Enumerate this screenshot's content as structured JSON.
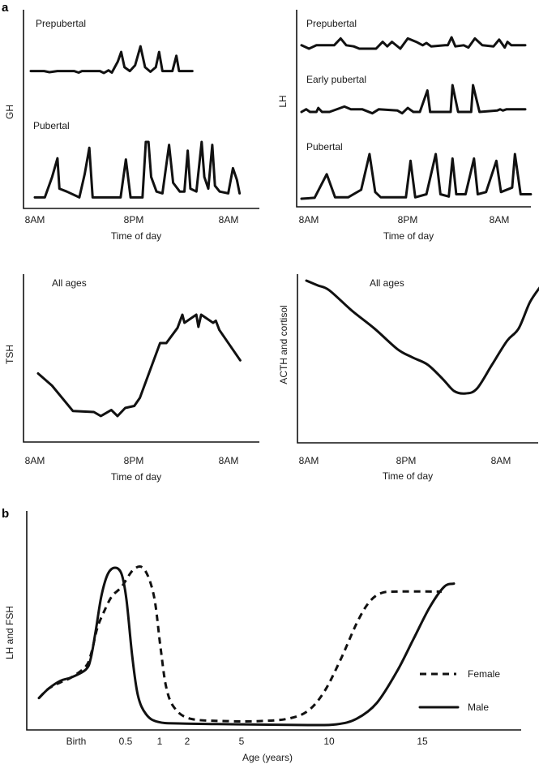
{
  "figure": {
    "panel_labels": [
      "a",
      "b"
    ]
  },
  "chart_data": [
    {
      "id": "gh",
      "type": "line",
      "panel": "a",
      "title": "",
      "xlabel": "Time of day",
      "ylabel": "GH",
      "xticks": [
        {
          "h": 0,
          "label": "8AM"
        },
        {
          "h": 12,
          "label": "8PM"
        },
        {
          "h": 24,
          "label": "8AM"
        }
      ],
      "xlim": [
        -1.4,
        27.2
      ],
      "series": [
        {
          "name": "Prepubertal",
          "style": "solid",
          "band": [
            0.62,
            1.0
          ],
          "points": [
            [
              0,
              0.2
            ],
            [
              2,
              0.2
            ],
            [
              2.8,
              0.17
            ],
            [
              4,
              0.2
            ],
            [
              6.5,
              0.2
            ],
            [
              7.2,
              0.16
            ],
            [
              7.7,
              0.2
            ],
            [
              10.4,
              0.2
            ],
            [
              11,
              0.15
            ],
            [
              11.7,
              0.22
            ],
            [
              12.2,
              0.16
            ],
            [
              13.1,
              0.45
            ],
            [
              13.6,
              0.7
            ],
            [
              14.1,
              0.3
            ],
            [
              14.9,
              0.2
            ],
            [
              15.7,
              0.35
            ],
            [
              16.5,
              0.85
            ],
            [
              17.2,
              0.3
            ],
            [
              18,
              0.18
            ],
            [
              18.8,
              0.3
            ],
            [
              19.3,
              0.7
            ],
            [
              19.8,
              0.2
            ],
            [
              21.3,
              0.2
            ],
            [
              21.9,
              0.6
            ],
            [
              22.3,
              0.2
            ],
            [
              24.3,
              0.2
            ]
          ]
        },
        {
          "name": "Pubertal",
          "style": "solid",
          "band": [
            0.0,
            0.41
          ],
          "points": [
            [
              0,
              0.05
            ],
            [
              1.5,
              0.05
            ],
            [
              2.6,
              0.4
            ],
            [
              3.4,
              0.72
            ],
            [
              3.7,
              0.2
            ],
            [
              4.8,
              0.15
            ],
            [
              6.7,
              0.05
            ],
            [
              7.5,
              0.45
            ],
            [
              8.2,
              0.9
            ],
            [
              8.7,
              0.05
            ],
            [
              12.9,
              0.05
            ],
            [
              13.7,
              0.7
            ],
            [
              14.4,
              0.05
            ],
            [
              16.2,
              0.05
            ],
            [
              16.7,
              1.0
            ],
            [
              17.1,
              1.0
            ],
            [
              17.5,
              0.4
            ],
            [
              18.3,
              0.15
            ],
            [
              19.2,
              0.12
            ],
            [
              20.2,
              0.95
            ],
            [
              20.8,
              0.3
            ],
            [
              21.8,
              0.15
            ],
            [
              22.5,
              0.15
            ],
            [
              23,
              0.85
            ],
            [
              23.4,
              0.2
            ],
            [
              24.3,
              0.15
            ],
            [
              25.1,
              1.0
            ],
            [
              25.5,
              0.4
            ],
            [
              26.1,
              0.2
            ],
            [
              26.7,
              0.95
            ],
            [
              27.1,
              0.25
            ],
            [
              27.8,
              0.15
            ],
            [
              29.1,
              0.12
            ],
            [
              29.8,
              0.55
            ],
            [
              30.4,
              0.35
            ],
            [
              30.8,
              0.12
            ]
          ]
        }
      ],
      "annotations": [
        {
          "text": "Prepubertal"
        },
        {
          "text": "Pubertal"
        }
      ]
    },
    {
      "id": "lh",
      "type": "line",
      "panel": "a",
      "xlabel": "Time of day",
      "ylabel": "LH",
      "xticks": [
        {
          "h": 0,
          "label": "8AM"
        },
        {
          "h": 12,
          "label": "8PM"
        },
        {
          "h": 24,
          "label": "8AM"
        }
      ],
      "series": [
        {
          "name": "Prepubertal",
          "style": "solid"
        },
        {
          "name": "Early pubertal",
          "style": "solid"
        },
        {
          "name": "Pubertal",
          "style": "solid"
        }
      ],
      "annotations": [
        {
          "text": "Prepubertal"
        },
        {
          "text": "Early pubertal"
        },
        {
          "text": "Pubertal"
        }
      ]
    },
    {
      "id": "tsh",
      "type": "line",
      "panel": "a",
      "xlabel": "Time of day",
      "ylabel": "TSH",
      "xticks": [
        {
          "h": 0,
          "label": "8AM"
        },
        {
          "h": 12,
          "label": "8PM"
        },
        {
          "h": 24,
          "label": "8AM"
        }
      ],
      "series": [
        {
          "name": "All ages",
          "style": "solid"
        }
      ],
      "annotations": [
        {
          "text": "All ages"
        }
      ]
    },
    {
      "id": "acth",
      "type": "line",
      "panel": "a",
      "xlabel": "Time of day",
      "ylabel": "ACTH and cortisol",
      "xticks": [
        {
          "h": 0,
          "label": "8AM"
        },
        {
          "h": 12,
          "label": "8PM"
        },
        {
          "h": 24,
          "label": "8AM"
        }
      ],
      "series": [
        {
          "name": "All ages",
          "style": "solid"
        }
      ],
      "annotations": [
        {
          "text": "All ages"
        }
      ]
    },
    {
      "id": "lhfsh",
      "type": "line",
      "panel": "b",
      "xlabel": "Age (years)",
      "ylabel": "LH and FSH",
      "xticks": [
        {
          "label": "Birth"
        },
        {
          "label": "0.5"
        },
        {
          "label": "1"
        },
        {
          "label": "2"
        },
        {
          "label": "5"
        },
        {
          "label": "10"
        },
        {
          "label": "15"
        }
      ],
      "legend": {
        "position": "right",
        "entries": [
          {
            "name": "Female",
            "style": "dashed"
          },
          {
            "name": "Male",
            "style": "solid"
          }
        ]
      },
      "series": [
        {
          "name": "Female",
          "style": "dashed"
        },
        {
          "name": "Male",
          "style": "solid"
        }
      ]
    }
  ]
}
